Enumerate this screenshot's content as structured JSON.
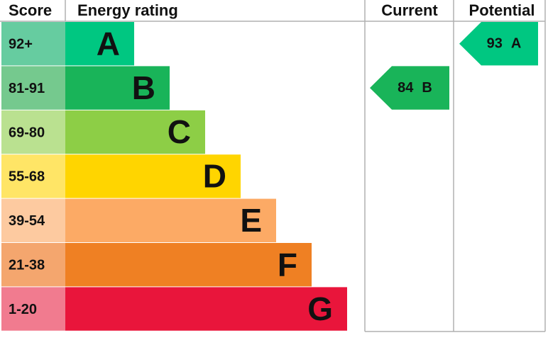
{
  "header": {
    "score": "Score",
    "rating": "Energy rating",
    "current": "Current",
    "potential": "Potential"
  },
  "bands": [
    {
      "score": "92+",
      "letter": "A",
      "color": "#00c781",
      "score_color": "#66cca0"
    },
    {
      "score": "81-91",
      "letter": "B",
      "color": "#19b459",
      "score_color": "#75c98e"
    },
    {
      "score": "69-80",
      "letter": "C",
      "color": "#8dce46",
      "score_color": "#bae190"
    },
    {
      "score": "55-68",
      "letter": "D",
      "color": "#ffd500",
      "score_color": "#ffe566"
    },
    {
      "score": "39-54",
      "letter": "E",
      "color": "#fcaa65",
      "score_color": "#fdcaa0"
    },
    {
      "score": "21-38",
      "letter": "F",
      "color": "#ef8023",
      "score_color": "#f4a66e"
    },
    {
      "score": "1-20",
      "letter": "G",
      "color": "#e9153b",
      "score_color": "#f17b8f"
    }
  ],
  "current": {
    "value": 84,
    "letter": "B"
  },
  "potential": {
    "value": 93,
    "letter": "A"
  }
}
